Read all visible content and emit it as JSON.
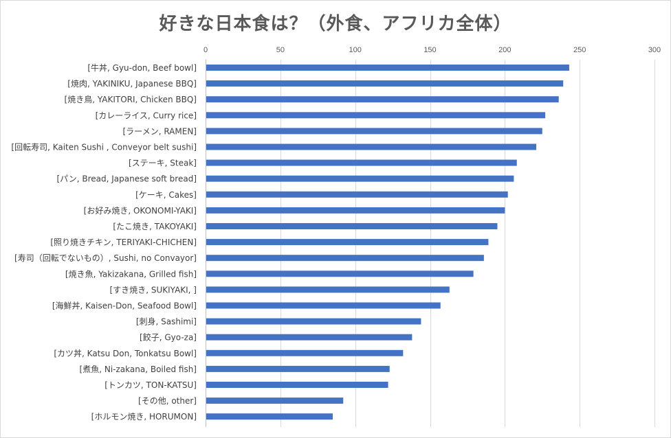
{
  "chart_data": {
    "type": "bar",
    "orientation": "horizontal",
    "title": "好きな日本食は？（外食、アフリカ全体）",
    "xlim": [
      0,
      300
    ],
    "x_ticks": [
      0,
      50,
      100,
      150,
      200,
      250,
      300
    ],
    "x_axis_position": "top",
    "grid": true,
    "bar_color": "#4472C4",
    "categories": [
      "[牛丼, Gyu-don,  Beef bowl]",
      "[焼肉, YAKINIKU, Japanese BBQ]",
      "[焼き鳥, YAKITORI, Chicken BBQ]",
      "[カレーライス, Curry rice]",
      "[ラーメン, RAMEN]",
      "[回転寿司, Kaiten Sushi , Conveyor belt sushi]",
      "[ステーキ, Steak]",
      "[パン, Bread, Japanese soft bread]",
      "[ケーキ, Cakes]",
      "[お好み焼き, OKONOMI-YAKI]",
      "[たこ焼き, TAKOYAKI]",
      "[照り焼きチキン, TERIYAKI-CHICHEN]",
      "[寿司（回転でないもの）, Sushi, no Convayor]",
      "[焼き魚, Yakizakana, Grilled fish]",
      "[すき焼き, SUKIYAKI, ]",
      "[海鮮丼, Kaisen-Don, Seafood Bowl]",
      "[刺身, Sashimi]",
      "[餃子, Gyo-za]",
      "[カツ丼, Katsu Don, Tonkatsu Bowl]",
      "[煮魚, Ni-zakana, Boiled fish]",
      "[トンカツ, TON-KATSU]",
      "[その他, other]",
      "[ホルモン焼き, HORUMON]"
    ],
    "values": [
      243,
      239,
      236,
      227,
      225,
      221,
      208,
      206,
      202,
      200,
      195,
      189,
      186,
      179,
      163,
      157,
      144,
      138,
      132,
      123,
      122,
      92,
      85
    ]
  }
}
